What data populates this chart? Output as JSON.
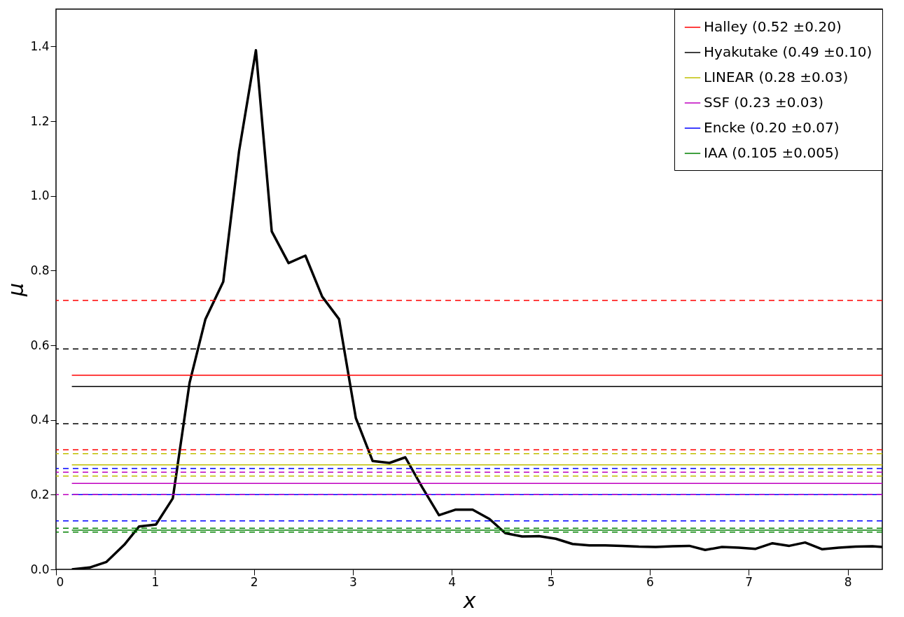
{
  "chart_data": {
    "type": "line",
    "xlabel": "x",
    "ylabel": "μ",
    "xlim": [
      0,
      8.35
    ],
    "ylim": [
      0,
      1.5
    ],
    "xticks": [
      0,
      1,
      2,
      3,
      4,
      5,
      6,
      7,
      8
    ],
    "yticks": [
      {
        "value": 0,
        "label": "0.0"
      },
      0.2,
      0.4,
      0.6,
      0.8,
      {
        "value": 1,
        "label": "1.0"
      },
      1.2,
      1.4
    ],
    "grid": false,
    "legend": "top right",
    "marker": "none",
    "line_style": "solid",
    "series": [
      {
        "color": "#000000",
        "x": [
          0.16,
          0.34,
          0.51,
          0.69,
          0.84,
          1.01,
          1.18,
          1.35,
          1.51,
          1.69,
          1.85,
          2.02,
          2.18,
          2.35,
          2.52,
          2.69,
          2.86,
          3.03,
          3.2,
          3.37,
          3.53,
          3.7,
          3.87,
          4.04,
          4.21,
          4.38,
          4.54,
          4.71,
          4.88,
          5.05,
          5.22,
          5.39,
          5.55,
          5.72,
          5.89,
          6.06,
          6.23,
          6.4,
          6.56,
          6.73,
          6.9,
          7.07,
          7.24,
          7.41,
          7.57,
          7.74,
          7.91,
          8.08,
          8.25,
          8.35
        ],
        "values": [
          0.0,
          0.005,
          0.02,
          0.066,
          0.115,
          0.12,
          0.19,
          0.5,
          0.67,
          0.77,
          1.12,
          1.39,
          0.905,
          0.82,
          0.84,
          0.73,
          0.67,
          0.405,
          0.29,
          0.285,
          0.3,
          0.22,
          0.145,
          0.16,
          0.16,
          0.135,
          0.097,
          0.088,
          0.089,
          0.082,
          0.068,
          0.064,
          0.064,
          0.063,
          0.061,
          0.06,
          0.062,
          0.063,
          0.052,
          0.06,
          0.058,
          0.055,
          0.07,
          0.063,
          0.072,
          0.054,
          0.058,
          0.061,
          0.062,
          0.06
        ]
      },
      {
        "name": "Halley (0.52 ±0.20)",
        "color": "#ff0000",
        "x": [
          0.16,
          8.35
        ],
        "values": [
          0.52,
          0.52
        ]
      },
      {
        "name": "Hyakutake (0.49 ±0.10)",
        "color": "#000000",
        "x": [
          0.16,
          8.35
        ],
        "values": [
          0.49,
          0.49
        ]
      },
      {
        "name": "LINEAR (0.28 ±0.03)",
        "color": "#bfbf00",
        "x": [
          0.16,
          8.35
        ],
        "values": [
          0.28,
          0.28
        ]
      },
      {
        "name": "SSF (0.23 ±0.03)",
        "color": "#bf00bf",
        "x": [
          0.16,
          8.35
        ],
        "values": [
          0.23,
          0.23
        ]
      },
      {
        "name": "Encke (0.20 ±0.07)",
        "color": "#0000ff",
        "x": [
          0.16,
          8.35
        ],
        "values": [
          0.2,
          0.2
        ]
      },
      {
        "name": "IAA (0.105 ±0.005)",
        "color": "#008000",
        "x": [
          0.16,
          8.35
        ],
        "values": [
          0.105,
          0.105
        ]
      }
    ],
    "ref_lines": [
      {
        "axis": "y",
        "value": 0.72,
        "color": "#ff0000",
        "line_style": "dashed"
      },
      {
        "axis": "y",
        "value": 0.32,
        "color": "#ff0000",
        "line_style": "dashed"
      },
      {
        "axis": "y",
        "value": 0.59,
        "color": "#000000",
        "line_style": "dashed"
      },
      {
        "axis": "y",
        "value": 0.39,
        "color": "#000000",
        "line_style": "dashed"
      },
      {
        "axis": "y",
        "value": 0.31,
        "color": "#bfbf00",
        "line_style": "dashed"
      },
      {
        "axis": "y",
        "value": 0.25,
        "color": "#bfbf00",
        "line_style": "dashed"
      },
      {
        "axis": "y",
        "value": 0.26,
        "color": "#bf00bf",
        "line_style": "dashed"
      },
      {
        "axis": "y",
        "value": 0.2,
        "color": "#bf00bf",
        "line_style": "dashed"
      },
      {
        "axis": "y",
        "value": 0.27,
        "color": "#0000ff",
        "line_style": "dashed"
      },
      {
        "axis": "y",
        "value": 0.13,
        "color": "#0000ff",
        "line_style": "dashed"
      },
      {
        "axis": "y",
        "value": 0.11,
        "color": "#008000",
        "line_style": "dashed"
      },
      {
        "axis": "y",
        "value": 0.1,
        "color": "#008000",
        "line_style": "dashed"
      }
    ]
  }
}
